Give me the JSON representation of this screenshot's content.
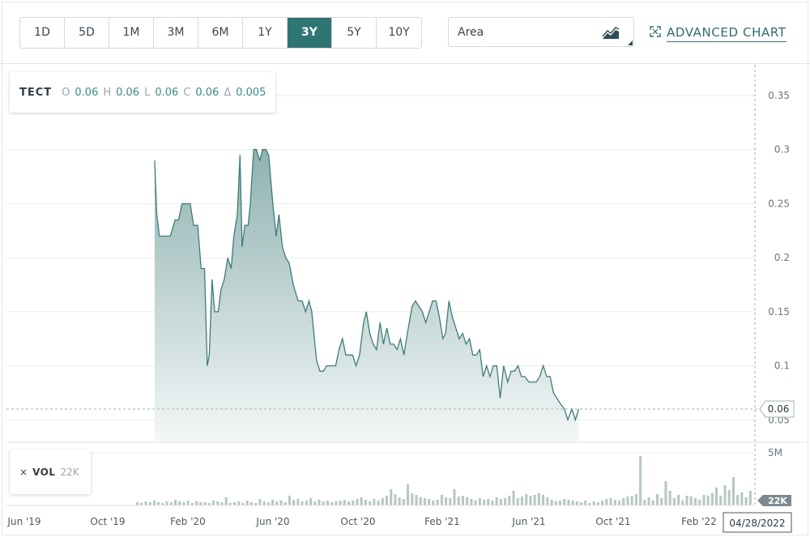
{
  "ranges": [
    {
      "label": "1D",
      "active": false
    },
    {
      "label": "5D",
      "active": false
    },
    {
      "label": "1M",
      "active": false
    },
    {
      "label": "3M",
      "active": false
    },
    {
      "label": "6M",
      "active": false
    },
    {
      "label": "1Y",
      "active": false
    },
    {
      "label": "3Y",
      "active": true
    },
    {
      "label": "5Y",
      "active": false
    },
    {
      "label": "10Y",
      "active": false
    }
  ],
  "chart_type": {
    "label": "Area",
    "icon": "area-chart-icon"
  },
  "advanced": {
    "label": "ADVANCED CHART",
    "icon": "expand-icon"
  },
  "legend": {
    "symbol": "TECT",
    "o_label": "O",
    "o": "0.06",
    "h_label": "H",
    "h": "0.06",
    "l_label": "L",
    "l": "0.06",
    "c_label": "C",
    "c": "0.06",
    "d_label": "Δ",
    "d": "0.005"
  },
  "volume_legend": {
    "close": "×",
    "label": "VOL",
    "value": "22K"
  },
  "colors": {
    "accent": "#2f7574",
    "line": "#3f7b78",
    "area_top": "#8fb2b0",
    "area_bottom": "#f3f7f7",
    "volume": "#b8c7c6"
  },
  "chart_data": {
    "type": "area",
    "ylim": [
      0.03,
      0.38
    ],
    "yticks": [
      {
        "v": 0.05,
        "label": "0.05"
      },
      {
        "v": 0.1,
        "label": "0.1"
      },
      {
        "v": 0.15,
        "label": "0.15"
      },
      {
        "v": 0.2,
        "label": "0.2"
      },
      {
        "v": 0.25,
        "label": "0.25"
      },
      {
        "v": 0.3,
        "label": "0.3"
      },
      {
        "v": 0.35,
        "label": "0.35"
      }
    ],
    "xticks": [
      "Jun '19",
      "Oct '19",
      "Feb '20",
      "Jun '20",
      "Oct '20",
      "Feb '21",
      "Jun '21",
      "Oct '21",
      "Feb '22"
    ],
    "x_range": [
      "2019-04-28",
      "2022-04-28"
    ],
    "last_value": "0.06",
    "last_date": "04/28/2022",
    "volume_axis_label": "5M",
    "volume_last": "22K",
    "series": [
      {
        "values": [
          [
            "2019-12-01",
            0.29
          ],
          [
            "2019-12-04",
            0.24
          ],
          [
            "2019-12-08",
            0.22
          ],
          [
            "2019-12-15",
            0.22
          ],
          [
            "2019-12-24",
            0.22
          ],
          [
            "2019-12-31",
            0.235
          ],
          [
            "2020-01-05",
            0.235
          ],
          [
            "2020-01-10",
            0.25
          ],
          [
            "2020-01-17",
            0.25
          ],
          [
            "2020-01-22",
            0.25
          ],
          [
            "2020-01-27",
            0.23
          ],
          [
            "2020-02-02",
            0.23
          ],
          [
            "2020-02-07",
            0.19
          ],
          [
            "2020-02-12",
            0.19
          ],
          [
            "2020-02-16",
            0.1
          ],
          [
            "2020-02-19",
            0.11
          ],
          [
            "2020-02-23",
            0.18
          ],
          [
            "2020-02-27",
            0.15
          ],
          [
            "2020-03-03",
            0.15
          ],
          [
            "2020-03-07",
            0.17
          ],
          [
            "2020-03-12",
            0.18
          ],
          [
            "2020-03-17",
            0.2
          ],
          [
            "2020-03-22",
            0.19
          ],
          [
            "2020-03-26",
            0.22
          ],
          [
            "2020-03-31",
            0.24
          ],
          [
            "2020-04-04",
            0.295
          ],
          [
            "2020-04-07",
            0.21
          ],
          [
            "2020-04-11",
            0.23
          ],
          [
            "2020-04-16",
            0.23
          ],
          [
            "2020-04-19",
            0.25
          ],
          [
            "2020-04-24",
            0.3
          ],
          [
            "2020-04-28",
            0.3
          ],
          [
            "2020-05-03",
            0.29
          ],
          [
            "2020-05-07",
            0.3
          ],
          [
            "2020-05-12",
            0.3
          ],
          [
            "2020-05-16",
            0.295
          ],
          [
            "2020-05-22",
            0.25
          ],
          [
            "2020-05-27",
            0.22
          ],
          [
            "2020-05-31",
            0.24
          ],
          [
            "2020-06-05",
            0.21
          ],
          [
            "2020-06-10",
            0.2
          ],
          [
            "2020-06-15",
            0.195
          ],
          [
            "2020-06-21",
            0.175
          ],
          [
            "2020-06-28",
            0.16
          ],
          [
            "2020-07-04",
            0.16
          ],
          [
            "2020-07-09",
            0.15
          ],
          [
            "2020-07-14",
            0.16
          ],
          [
            "2020-07-18",
            0.15
          ],
          [
            "2020-07-25",
            0.105
          ],
          [
            "2020-07-30",
            0.095
          ],
          [
            "2020-08-04",
            0.095
          ],
          [
            "2020-08-09",
            0.1
          ],
          [
            "2020-08-16",
            0.1
          ],
          [
            "2020-08-22",
            0.1
          ],
          [
            "2020-08-27",
            0.115
          ],
          [
            "2020-09-01",
            0.125
          ],
          [
            "2020-09-06",
            0.11
          ],
          [
            "2020-09-16",
            0.11
          ],
          [
            "2020-09-21",
            0.1
          ],
          [
            "2020-09-26",
            0.11
          ],
          [
            "2020-10-02",
            0.14
          ],
          [
            "2020-10-06",
            0.15
          ],
          [
            "2020-10-11",
            0.13
          ],
          [
            "2020-10-16",
            0.12
          ],
          [
            "2020-10-21",
            0.115
          ],
          [
            "2020-10-26",
            0.14
          ],
          [
            "2020-10-31",
            0.12
          ],
          [
            "2020-11-05",
            0.135
          ],
          [
            "2020-11-10",
            0.12
          ],
          [
            "2020-11-15",
            0.12
          ],
          [
            "2020-11-20",
            0.115
          ],
          [
            "2020-11-25",
            0.125
          ],
          [
            "2020-11-30",
            0.11
          ],
          [
            "2020-12-05",
            0.13
          ],
          [
            "2020-12-12",
            0.155
          ],
          [
            "2020-12-17",
            0.16
          ],
          [
            "2020-12-22",
            0.155
          ],
          [
            "2020-12-27",
            0.15
          ],
          [
            "2021-01-01",
            0.14
          ],
          [
            "2021-01-06",
            0.15
          ],
          [
            "2021-01-11",
            0.16
          ],
          [
            "2021-01-16",
            0.16
          ],
          [
            "2021-01-21",
            0.145
          ],
          [
            "2021-01-26",
            0.125
          ],
          [
            "2021-01-30",
            0.13
          ],
          [
            "2021-02-04",
            0.16
          ],
          [
            "2021-02-09",
            0.145
          ],
          [
            "2021-02-14",
            0.135
          ],
          [
            "2021-02-19",
            0.125
          ],
          [
            "2021-02-24",
            0.13
          ],
          [
            "2021-03-01",
            0.12
          ],
          [
            "2021-03-06",
            0.125
          ],
          [
            "2021-03-11",
            0.11
          ],
          [
            "2021-03-16",
            0.11
          ],
          [
            "2021-03-21",
            0.115
          ],
          [
            "2021-03-26",
            0.09
          ],
          [
            "2021-03-31",
            0.1
          ],
          [
            "2021-04-05",
            0.09
          ],
          [
            "2021-04-10",
            0.1
          ],
          [
            "2021-04-15",
            0.1
          ],
          [
            "2021-04-20",
            0.07
          ],
          [
            "2021-04-25",
            0.1
          ],
          [
            "2021-05-01",
            0.085
          ],
          [
            "2021-05-06",
            0.095
          ],
          [
            "2021-05-11",
            0.095
          ],
          [
            "2021-05-16",
            0.1
          ],
          [
            "2021-05-21",
            0.09
          ],
          [
            "2021-05-26",
            0.09
          ],
          [
            "2021-06-01",
            0.085
          ],
          [
            "2021-06-07",
            0.085
          ],
          [
            "2021-06-12",
            0.085
          ],
          [
            "2021-06-17",
            0.09
          ],
          [
            "2021-06-22",
            0.1
          ],
          [
            "2021-06-27",
            0.09
          ],
          [
            "2021-07-02",
            0.09
          ],
          [
            "2021-07-07",
            0.075
          ],
          [
            "2021-07-12",
            0.07
          ],
          [
            "2021-07-17",
            0.065
          ],
          [
            "2021-07-23",
            0.06
          ],
          [
            "2021-07-28",
            0.05
          ],
          [
            "2021-08-03",
            0.06
          ],
          [
            "2021-08-08",
            0.05
          ],
          [
            "2021-08-13",
            0.06
          ]
        ]
      }
    ],
    "volume": []
  }
}
